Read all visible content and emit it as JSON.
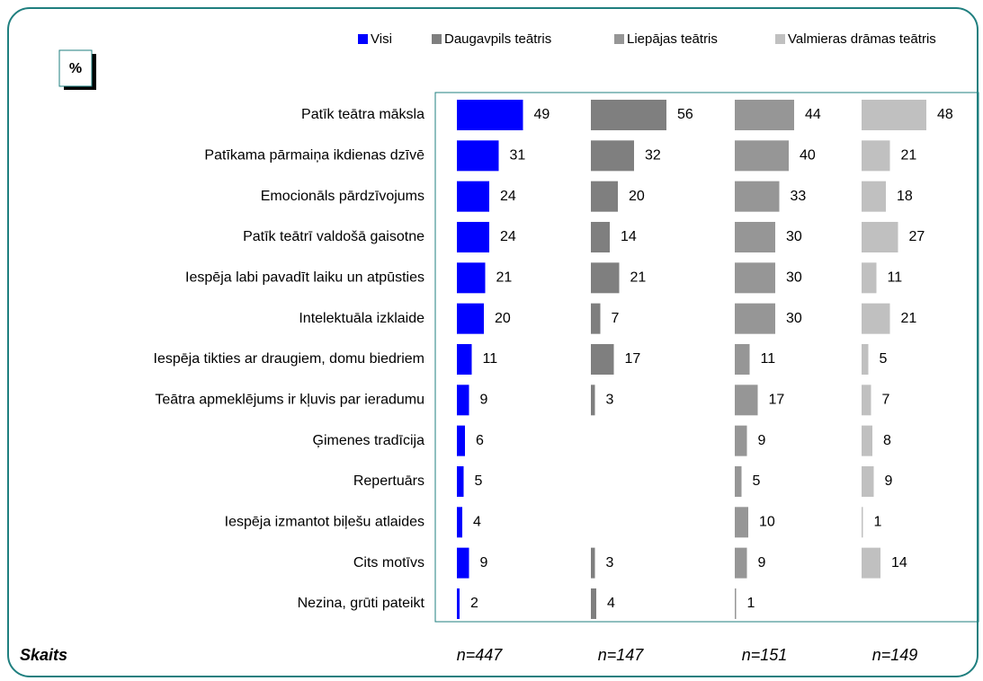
{
  "chart_data": {
    "type": "bar",
    "unit_label": "%",
    "categories": [
      "Patīk teātra māksla",
      "Patīkama pārmaiņa ikdienas dzīvē",
      "Emocionāls pārdzīvojums",
      "Patīk teātrī valdošā gaisotne",
      "Iespēja labi pavadīt laiku un atpūsties",
      "Intelektuāla izklaide",
      "Iespēja tikties ar draugiem, domu biedriem",
      "Teātra apmeklējums ir kļuvis par ieradumu",
      "Ģimenes tradīcija",
      "Repertuārs",
      "Iespēja izmantot biļešu atlaides",
      "Cits motīvs",
      "Nezina, grūti pateikt"
    ],
    "series": [
      {
        "name": "Visi",
        "color": "#0000ff",
        "values": [
          49,
          31,
          24,
          24,
          21,
          20,
          11,
          9,
          6,
          5,
          4,
          9,
          2
        ]
      },
      {
        "name": "Daugavpils teātris",
        "color": "#7f7f7f",
        "values": [
          56,
          32,
          20,
          14,
          21,
          7,
          17,
          3,
          null,
          null,
          null,
          3,
          4
        ]
      },
      {
        "name": "Liepājas teātris",
        "color": "#969696",
        "values": [
          44,
          40,
          33,
          30,
          30,
          30,
          11,
          17,
          9,
          5,
          10,
          9,
          1
        ]
      },
      {
        "name": "Valmieras drāmas teātris",
        "color": "#c0c0c0",
        "values": [
          48,
          21,
          18,
          27,
          11,
          21,
          5,
          7,
          8,
          9,
          1,
          14,
          null
        ]
      }
    ],
    "sample_label": "Skaits",
    "sample_sizes": [
      "n=447",
      "n=147",
      "n=151",
      "n=149"
    ]
  }
}
